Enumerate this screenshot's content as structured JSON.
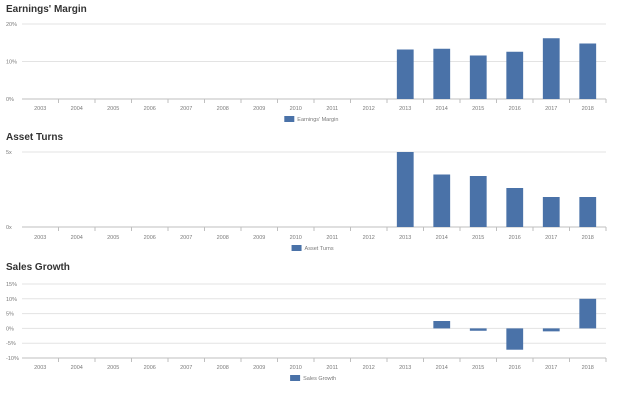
{
  "colors": {
    "bar": "#4a72a8",
    "grid": "#e3e3e3",
    "axis": "#bfbfbf",
    "tick_text": "#7a7a7a",
    "title": "#333333"
  },
  "chart_data": [
    {
      "type": "bar",
      "title": "Earnings' Margin",
      "categories": [
        "2003",
        "2004",
        "2005",
        "2006",
        "2007",
        "2008",
        "2009",
        "2010",
        "2011",
        "2012",
        "2013",
        "2014",
        "2015",
        "2016",
        "2017",
        "2018"
      ],
      "series": [
        {
          "name": "Earnings' Margin",
          "values": [
            null,
            null,
            null,
            null,
            null,
            null,
            null,
            null,
            null,
            null,
            13.2,
            13.4,
            11.6,
            12.6,
            16.2,
            14.8
          ]
        }
      ],
      "ylim": [
        0,
        20
      ],
      "yticks": [
        0,
        10,
        20
      ],
      "ytick_labels": [
        "0%",
        "10%",
        "20%"
      ],
      "grid": true,
      "legend": "bottom-center"
    },
    {
      "type": "bar",
      "title": "Asset Turns",
      "categories": [
        "2003",
        "2004",
        "2005",
        "2006",
        "2007",
        "2008",
        "2009",
        "2010",
        "2011",
        "2012",
        "2013",
        "2014",
        "2015",
        "2016",
        "2017",
        "2018"
      ],
      "series": [
        {
          "name": "Asset Turns",
          "values": [
            null,
            null,
            null,
            null,
            null,
            null,
            null,
            null,
            null,
            null,
            5.0,
            3.5,
            3.4,
            2.6,
            2.0,
            2.0
          ]
        }
      ],
      "ylim": [
        0,
        5
      ],
      "yticks": [
        0,
        5
      ],
      "ytick_labels": [
        "0x",
        "5x"
      ],
      "grid": true,
      "legend": "bottom-center"
    },
    {
      "type": "bar",
      "title": "Sales Growth",
      "categories": [
        "2003",
        "2004",
        "2005",
        "2006",
        "2007",
        "2008",
        "2009",
        "2010",
        "2011",
        "2012",
        "2013",
        "2014",
        "2015",
        "2016",
        "2017",
        "2018"
      ],
      "series": [
        {
          "name": "Sales Growth",
          "values": [
            null,
            null,
            null,
            null,
            null,
            null,
            null,
            null,
            null,
            null,
            null,
            2.5,
            -0.8,
            -7.2,
            -1.0,
            10.0
          ]
        }
      ],
      "ylim": [
        -10,
        15
      ],
      "yticks": [
        -10,
        -5,
        0,
        5,
        10,
        15
      ],
      "ytick_labels": [
        "-10%",
        "-5%",
        "0%",
        "5%",
        "10%",
        "15%"
      ],
      "grid": true,
      "legend": "bottom-center"
    }
  ]
}
